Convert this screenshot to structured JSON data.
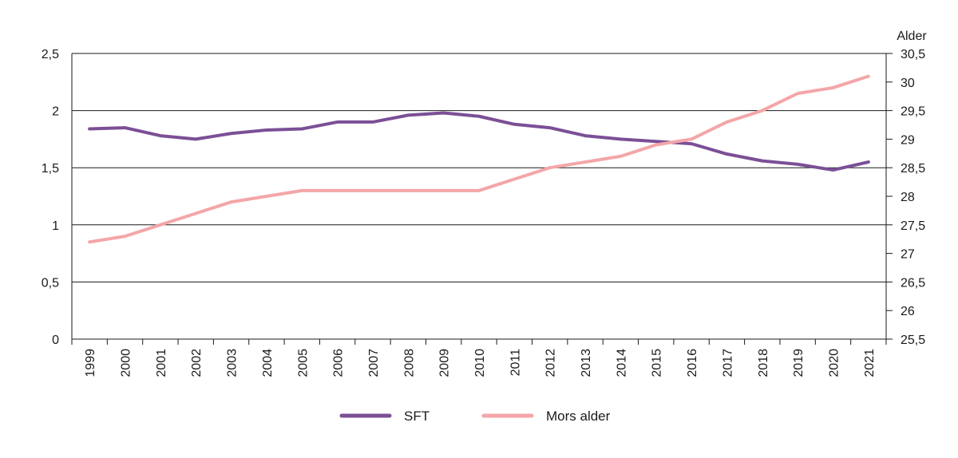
{
  "chart_data": {
    "type": "line",
    "title": "",
    "xlabel": "",
    "ylabel": "",
    "y2label": "Alder",
    "categories": [
      "1999",
      "2000",
      "2001",
      "2002",
      "2003",
      "2004",
      "2005",
      "2006",
      "2007",
      "2008",
      "2009",
      "2010",
      "2011",
      "2012",
      "2013",
      "2014",
      "2015",
      "2016",
      "2017",
      "2018",
      "2019",
      "2020",
      "2021"
    ],
    "ylim": [
      0,
      2.5
    ],
    "y_ticks": [
      0,
      0.5,
      1,
      1.5,
      2,
      2.5
    ],
    "y_tick_labels": [
      "0",
      "0,5",
      "1",
      "1,5",
      "2",
      "2,5"
    ],
    "y2lim": [
      25.5,
      30.5
    ],
    "y2_ticks": [
      25.5,
      26,
      26.5,
      27,
      27.5,
      28,
      28.5,
      29,
      29.5,
      30,
      30.5
    ],
    "y2_tick_labels": [
      "25,5",
      "26",
      "26,5",
      "27",
      "27,5",
      "28",
      "28,5",
      "29",
      "29,5",
      "30",
      "30,5"
    ],
    "grid": true,
    "legend_position": "bottom-center",
    "series": [
      {
        "name": "SFT",
        "axis": "left",
        "color": "#7b4f96",
        "values": [
          1.84,
          1.85,
          1.78,
          1.75,
          1.8,
          1.83,
          1.84,
          1.9,
          1.9,
          1.96,
          1.98,
          1.95,
          1.88,
          1.85,
          1.78,
          1.75,
          1.73,
          1.71,
          1.62,
          1.56,
          1.53,
          1.48,
          1.55
        ]
      },
      {
        "name": "Mors alder",
        "axis": "right",
        "color": "#f4a6a8",
        "values": [
          27.2,
          27.3,
          27.5,
          27.7,
          27.9,
          28.0,
          28.1,
          28.1,
          28.1,
          28.1,
          28.1,
          28.1,
          28.3,
          28.5,
          28.6,
          28.7,
          28.9,
          29.0,
          29.3,
          29.5,
          29.8,
          29.9,
          30.1
        ]
      }
    ]
  }
}
